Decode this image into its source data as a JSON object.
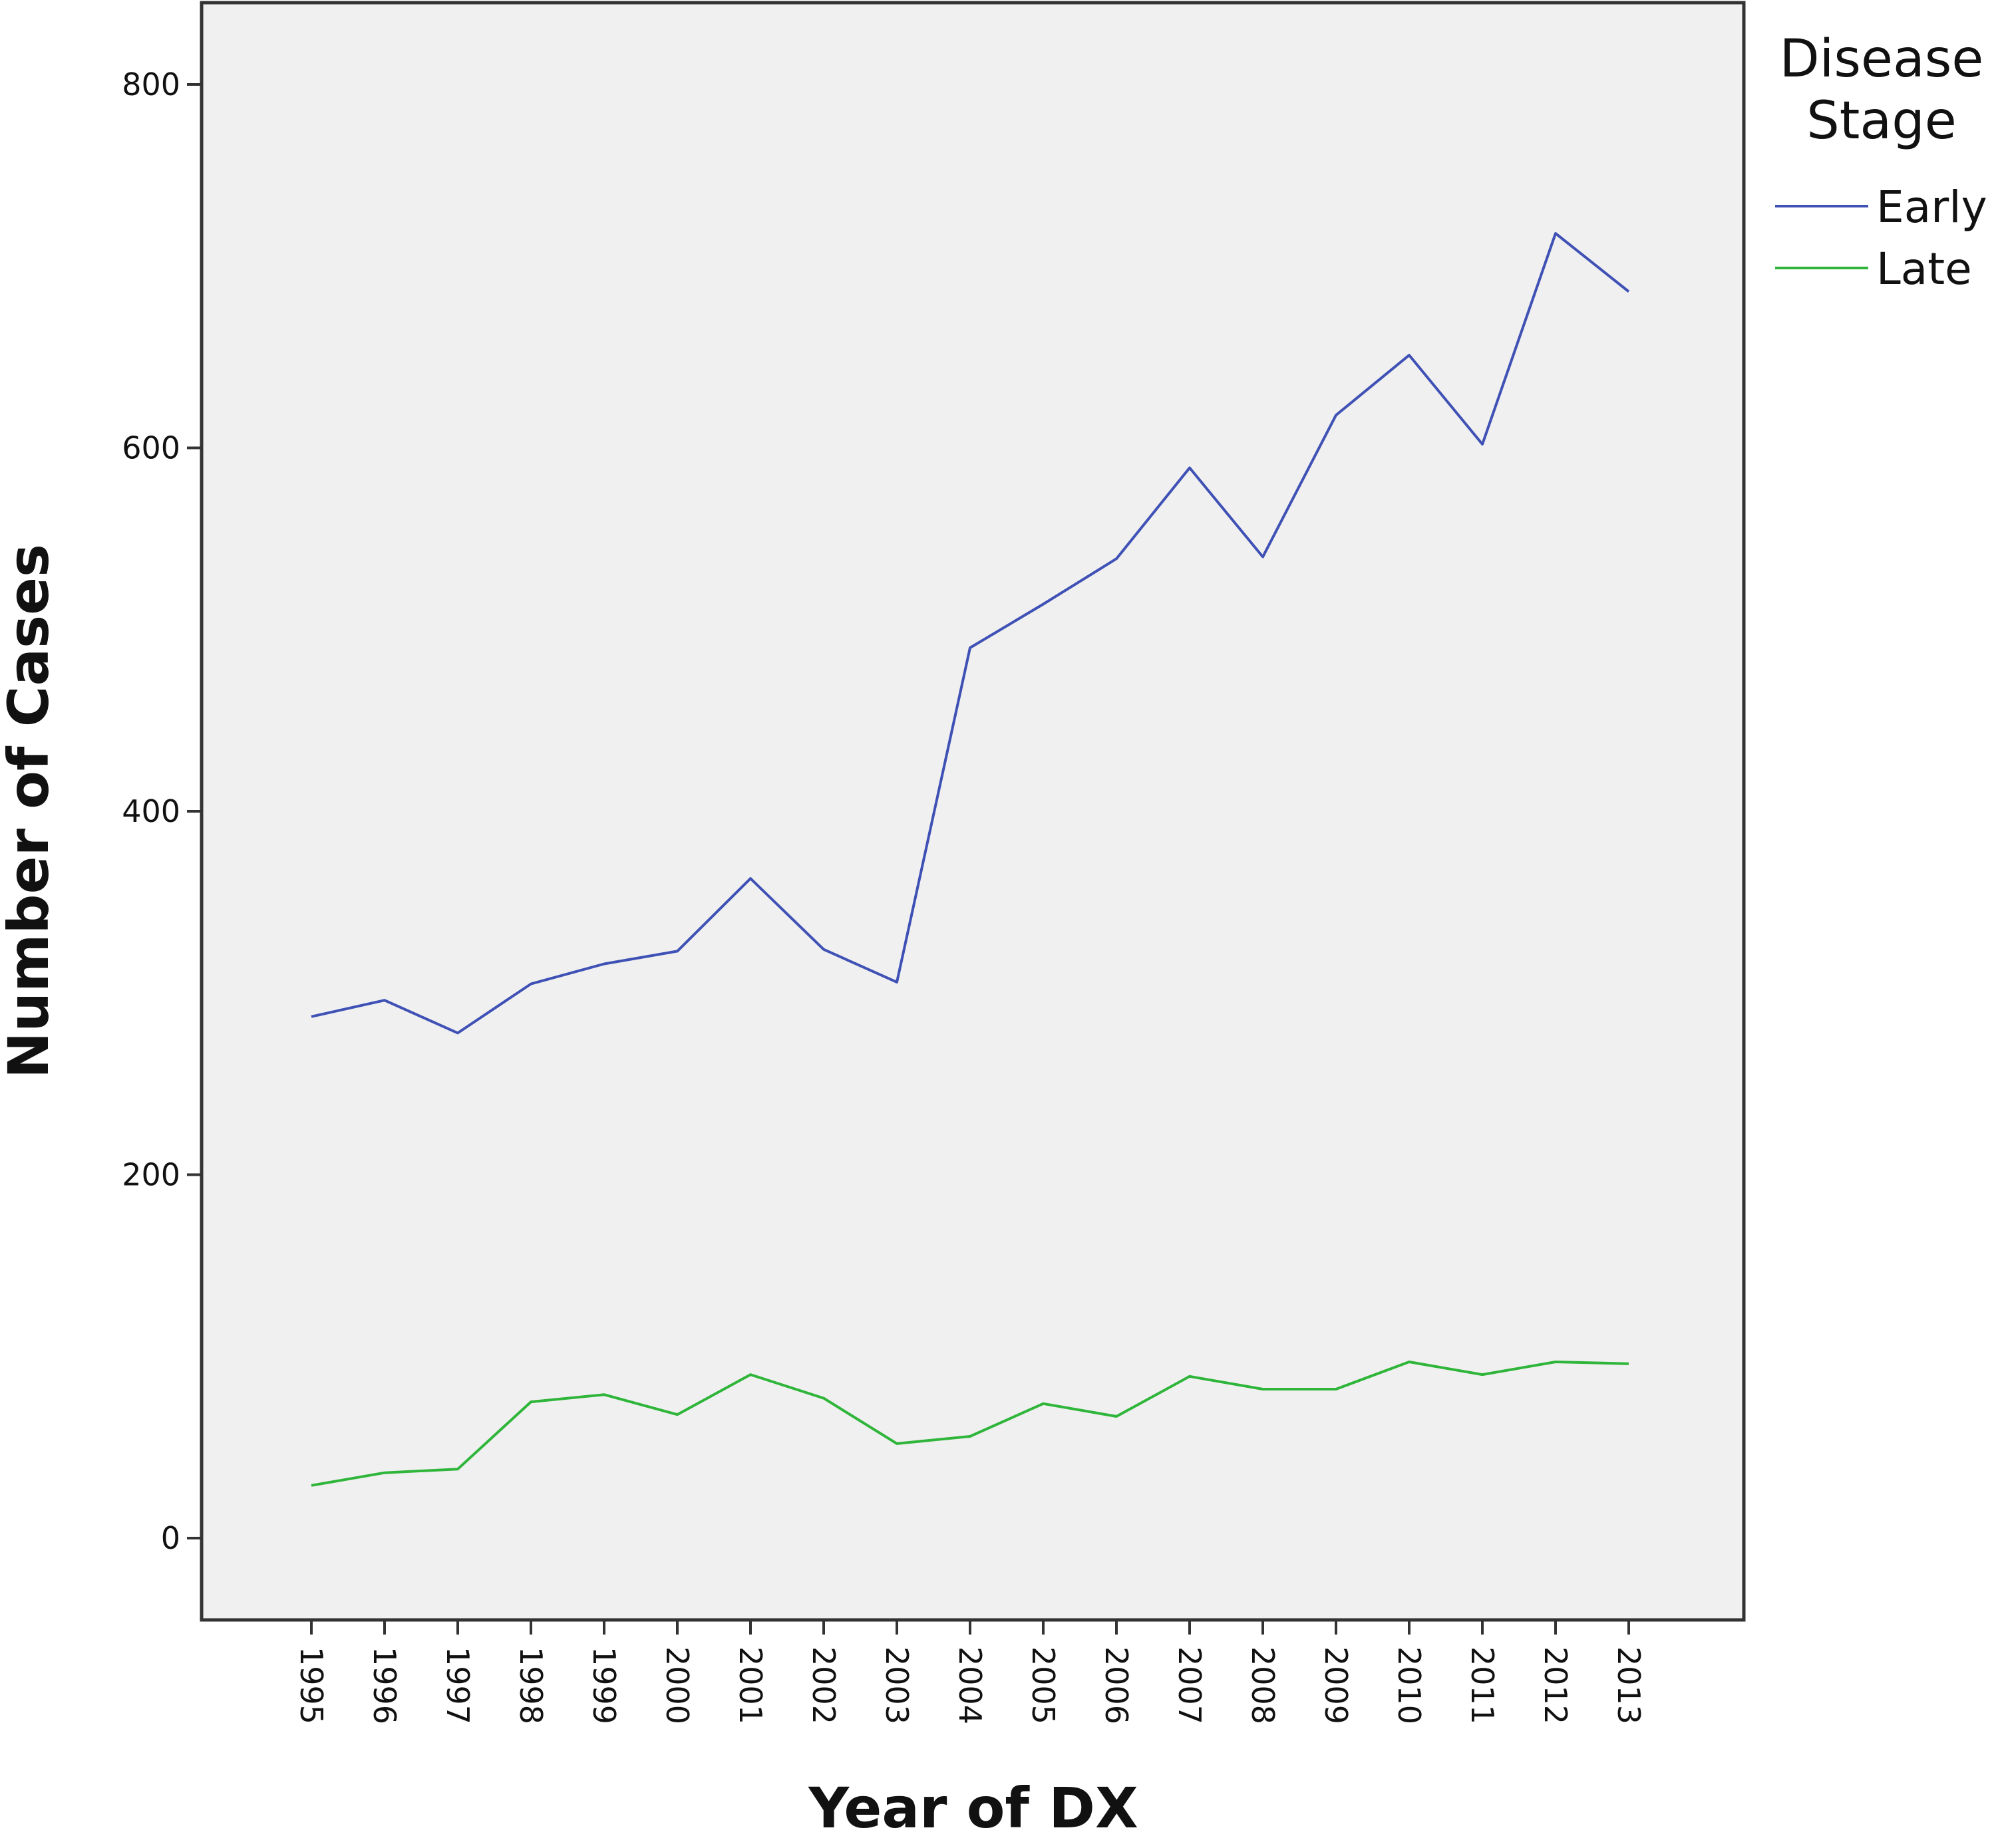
{
  "chart_data": {
    "type": "line",
    "title": "",
    "xlabel": "Year of DX",
    "ylabel": "Number of Cases",
    "x": [
      "1995",
      "1996",
      "1997",
      "1998",
      "1999",
      "2000",
      "2001",
      "2002",
      "2003",
      "2004",
      "2005",
      "2006",
      "2007",
      "2008",
      "2009",
      "2010",
      "2011",
      "2012",
      "2013"
    ],
    "series": [
      {
        "name": "Early",
        "color": "#3f51b5",
        "values": [
          287,
          296,
          278,
          305,
          316,
          323,
          363,
          324,
          306,
          490,
          514,
          539,
          589,
          540,
          618,
          651,
          602,
          718,
          686
        ]
      },
      {
        "name": "Late",
        "color": "#2fb53a",
        "values": [
          29,
          36,
          38,
          75,
          79,
          68,
          90,
          77,
          52,
          56,
          74,
          67,
          89,
          82,
          82,
          97,
          90,
          97,
          96
        ]
      }
    ],
    "yticks": [
      "0",
      "200",
      "400",
      "600",
      "800"
    ],
    "ylim": [
      -45,
      845
    ],
    "grid": false,
    "legend": {
      "title_line1": "Disease",
      "title_line2": "Stage",
      "placement": "right"
    },
    "plot_background": "#f0f0f0"
  }
}
